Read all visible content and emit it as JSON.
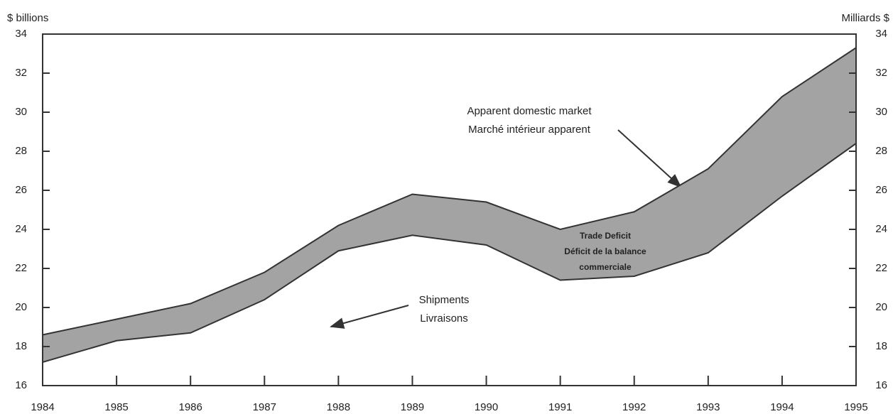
{
  "chart_data": {
    "type": "band",
    "y_axis_label": "$ billions",
    "y2_axis_label": "Milliards $",
    "x": [
      1984,
      1985,
      1986,
      1987,
      1988,
      1989,
      1990,
      1991,
      1992,
      1993,
      1994,
      1995
    ],
    "xlim": [
      1984,
      1995
    ],
    "xticks": [
      1984,
      1985,
      1986,
      1987,
      1988,
      1989,
      1990,
      1991,
      1992,
      1993,
      1994,
      1995
    ],
    "ylim": [
      16,
      34
    ],
    "yticks": [
      16,
      18,
      20,
      22,
      24,
      26,
      28,
      30,
      32,
      34
    ],
    "y2lim": [
      16,
      34
    ],
    "y2ticks": [
      16,
      18,
      20,
      22,
      24,
      26,
      28,
      30,
      32,
      34
    ],
    "band_color": "#a3a3a3",
    "series": [
      {
        "name": [
          "Apparent domestic market",
          "Marché intérieur apparent"
        ],
        "color": "#333333",
        "values": [
          18.6,
          19.4,
          20.2,
          21.8,
          24.2,
          25.8,
          25.4,
          24.0,
          24.9,
          27.1,
          30.8,
          33.3
        ]
      },
      {
        "name": [
          "Shipments",
          "Livraisons"
        ],
        "color": "#333333",
        "values": [
          17.2,
          18.3,
          18.7,
          20.4,
          22.9,
          23.7,
          23.2,
          21.4,
          21.6,
          22.8,
          25.7,
          28.4
        ]
      }
    ],
    "annotations": [
      {
        "text": [
          "Trade Deficit",
          "Déficit de la balance",
          "commerciale"
        ]
      }
    ]
  }
}
